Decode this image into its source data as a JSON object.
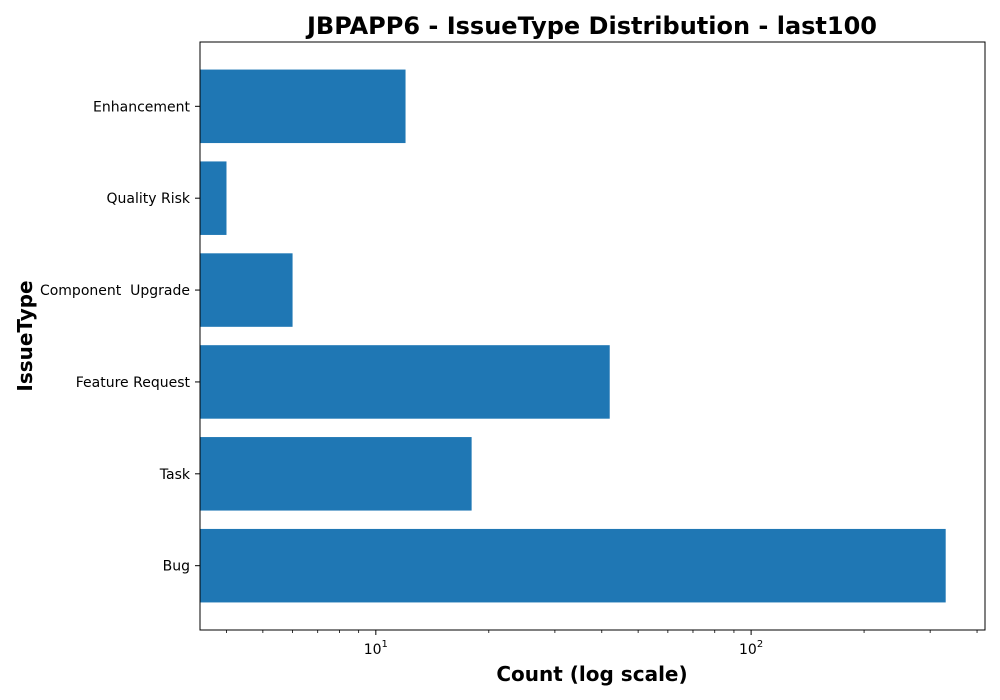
{
  "chart_data": {
    "type": "bar",
    "orientation": "horizontal",
    "title": "JBPAPP6 - IssueType Distribution - last100",
    "xlabel": "Count (log scale)",
    "ylabel": "IssueType",
    "x_scale": "log",
    "xlim": [
      3.4,
      420
    ],
    "x_major_ticks": [
      10,
      100
    ],
    "x_minor_ticks": [
      4,
      5,
      6,
      7,
      8,
      9,
      20,
      30,
      40,
      50,
      60,
      70,
      80,
      90,
      200,
      300,
      400
    ],
    "categories": [
      "Bug",
      "Task",
      "Feature Request",
      "Component  Upgrade",
      "Quality Risk",
      "Enhancement"
    ],
    "values": [
      330,
      18,
      42,
      6,
      4,
      12
    ],
    "bar_color": "#1f77b4",
    "grid": false,
    "legend": "none"
  }
}
